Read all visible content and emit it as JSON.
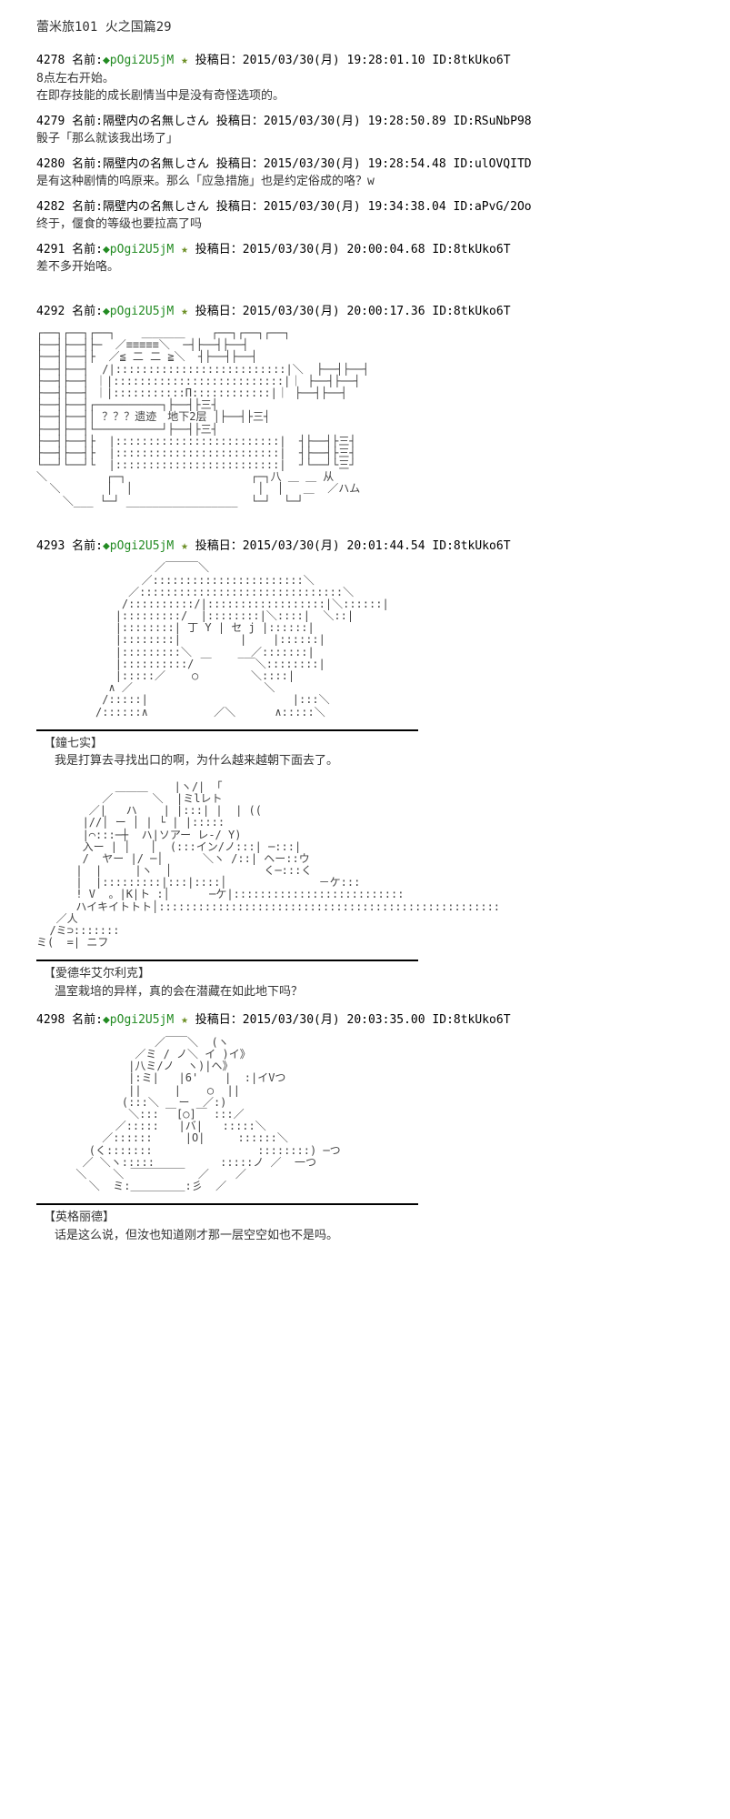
{
  "title": "蕾米旅101 火之国篇29",
  "posts": [
    {
      "num": "4278",
      "trip": "◆pOgi2U5jM",
      "star": "★",
      "date": "2015/03/30(月) 19:28:01.10",
      "id": "8tkUko6T",
      "body": [
        "8点左右开始。",
        "在即存技能的成长剧情当中是没有奇怪选项的。"
      ]
    },
    {
      "num": "4279",
      "name": "隔壁内の名無しさん",
      "date": "2015/03/30(月) 19:28:50.89",
      "id": "RSuNbP98",
      "body": [
        "骰子「那么就该我出场了」"
      ]
    },
    {
      "num": "4280",
      "name": "隔壁内の名無しさん",
      "date": "2015/03/30(月) 19:28:54.48",
      "id": "ulOVQITD",
      "body": [
        "是有这种剧情的呜原来。那么「应急措施」也是约定俗成的咯？w"
      ]
    },
    {
      "num": "4282",
      "name": "隔壁内の名無しさん",
      "date": "2015/03/30(月) 19:34:38.04",
      "id": "aPvG/2Oo",
      "body": [
        "终于，偃食的等级也要拉高了吗"
      ]
    },
    {
      "num": "4291",
      "trip": "◆pOgi2U5jM",
      "star": "★",
      "date": "2015/03/30(月) 20:00:04.68",
      "id": "8tkUko6T",
      "body": [
        "差不多开始咯。"
      ]
    },
    {
      "num": "4292",
      "trip": "◆pOgi2U5jM",
      "star": "★",
      "date": "2015/03/30(月) 20:00:17.36",
      "id": "8tkUko6T",
      "aa": "ruins"
    },
    {
      "num": "4293",
      "trip": "◆pOgi2U5jM",
      "star": "★",
      "date": "2015/03/30(月) 20:01:44.54",
      "id": "8tkUko6T",
      "aa": "nanami",
      "char": "【鐘七实】",
      "dialogue": "我是打算去寻找出口的啊，为什么越来越朝下面去了。",
      "aa2": "edward",
      "char2": "【愛德华艾尔利克】",
      "dialogue2": "温室栽培的异样，真的会在潜藏在如此地下吗？"
    },
    {
      "num": "4298",
      "trip": "◆pOgi2U5jM",
      "star": "★",
      "date": "2015/03/30(月) 20:03:35.00",
      "id": "8tkUko6T",
      "aa": "ingrid",
      "char": "【英格丽德】",
      "dialogue": "话是这么说，但汝也知道刚才那一层空空如也不是吗。"
    }
  ],
  "labels": {
    "name_prefix": "名前:",
    "post_prefix": "投稿日：",
    "id_prefix": "ID:"
  },
  "aa": {
    "ruins_label": "？？？遗迹　地下2层",
    "colors": {
      "art": "#444444",
      "background": "#ffffff"
    }
  }
}
